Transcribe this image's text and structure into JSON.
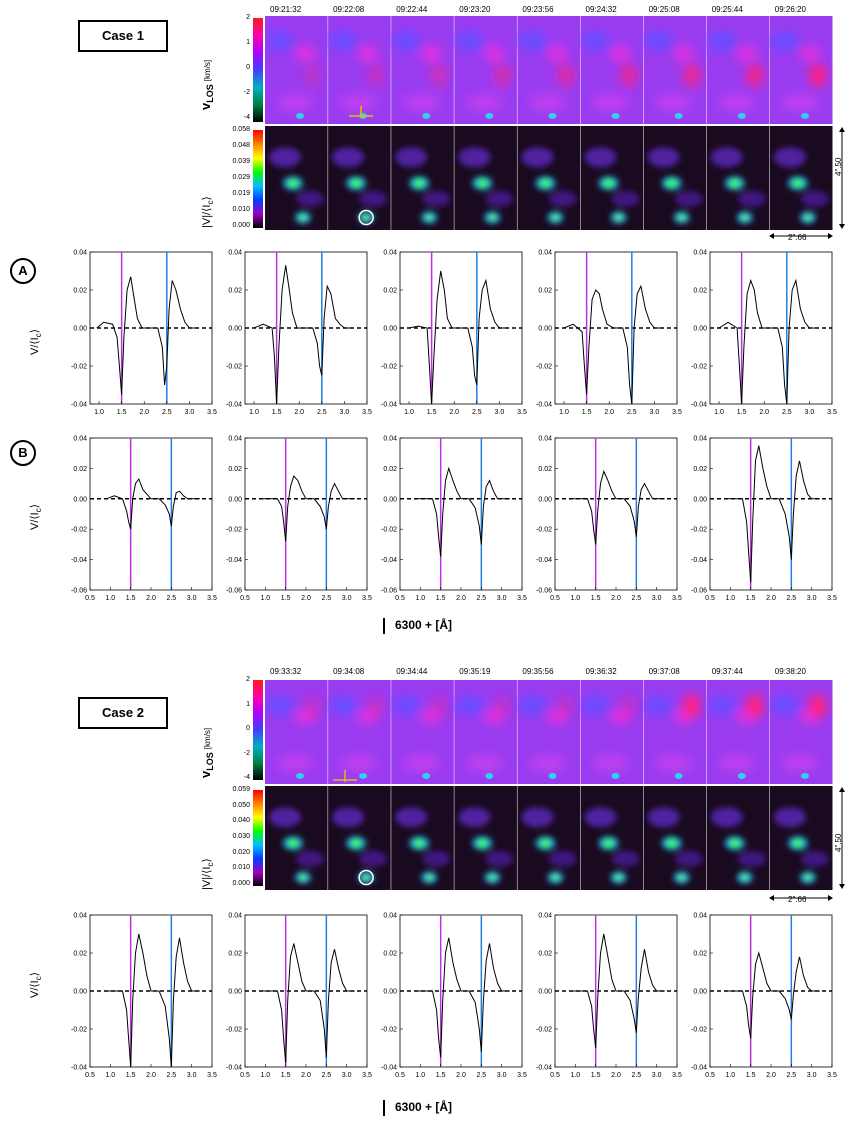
{
  "case1": {
    "label": "Case 1",
    "times": [
      "09:21:32",
      "09:22:08",
      "09:22:44",
      "09:23:20",
      "09:23:56",
      "09:24:32",
      "09:25:08",
      "09:25:44",
      "09:26:20"
    ],
    "vlos_label_main": "v",
    "vlos_label_sub": "LOS",
    "vlos_unit": "[km/s]",
    "vlos_ticks": [
      "2",
      "1",
      "0",
      "-2",
      "-4"
    ],
    "vi_label": "|V|/⟨I",
    "vi_label_sub": "c",
    "vi_label_end": "⟩",
    "vi_ticks": [
      "0.058",
      "0.048",
      "0.039",
      "0.029",
      "0.019",
      "0.010",
      "0.000"
    ],
    "height_scale": "4\".50",
    "width_scale": "2\".66"
  },
  "case2": {
    "label": "Case 2",
    "times": [
      "09:33:32",
      "09:34:08",
      "09:34:44",
      "09:35:19",
      "09:35:56",
      "09:36:32",
      "09:37:08",
      "09:37:44",
      "09:38:20"
    ],
    "vlos_label_main": "v",
    "vlos_label_sub": "LOS",
    "vlos_unit": "[km/s]",
    "vlos_ticks": [
      "2",
      "1",
      "0",
      "-2",
      "-4"
    ],
    "vi_label": "|V|/⟨I",
    "vi_label_sub": "c",
    "vi_label_end": "⟩",
    "vi_ticks": [
      "0.059",
      "0.050",
      "0.040",
      "0.030",
      "0.020",
      "0.010",
      "0.000"
    ],
    "height_scale": "4\".50",
    "width_scale": "2\".66"
  },
  "row_labels": {
    "a": "A",
    "b": "B"
  },
  "ylabel": "V/⟨I",
  "ylabel_sub": "c",
  "ylabel_end": "⟩",
  "xlabel": "6300 +  [Å]",
  "chart_data": [
    {
      "type": "line",
      "name_row": "A",
      "x_ticks": [
        "1.0",
        "1.5",
        "2.0",
        "2.5",
        "3.0",
        "3.5"
      ],
      "xlim": [
        0.8,
        3.5
      ],
      "ylim": [
        -0.04,
        0.04
      ],
      "y_ticks": [
        "0.04",
        "0.02",
        "0.00",
        "-0.02",
        "-0.04"
      ],
      "lines": {
        "magenta_x": 1.5,
        "blue_x": 2.5
      },
      "panels": [
        {
          "x": [
            0.95,
            1.1,
            1.3,
            1.4,
            1.45,
            1.5,
            1.55,
            1.62,
            1.7,
            1.78,
            1.85,
            1.95,
            2.1,
            2.3,
            2.4,
            2.45,
            2.5,
            2.55,
            2.62,
            2.7,
            2.8,
            2.9,
            3.0,
            3.2
          ],
          "y": [
            0.0,
            0.003,
            0.002,
            -0.005,
            -0.02,
            -0.035,
            -0.005,
            0.02,
            0.027,
            0.015,
            0.005,
            0.0,
            0.0,
            0.0,
            -0.01,
            -0.03,
            -0.02,
            0.01,
            0.025,
            0.02,
            0.01,
            0.003,
            0.0,
            0.0
          ]
        },
        {
          "x": [
            1.0,
            1.2,
            1.4,
            1.45,
            1.5,
            1.55,
            1.62,
            1.7,
            1.78,
            1.85,
            1.95,
            2.1,
            2.3,
            2.4,
            2.45,
            2.5,
            2.55,
            2.62,
            2.7,
            2.8,
            2.9,
            3.0,
            3.2
          ],
          "y": [
            0.0,
            0.002,
            0.0,
            -0.015,
            -0.04,
            -0.01,
            0.02,
            0.033,
            0.02,
            0.008,
            0.0,
            0.0,
            0.0,
            -0.008,
            -0.02,
            -0.025,
            0.005,
            0.022,
            0.018,
            0.005,
            0.002,
            0.0,
            0.0
          ]
        },
        {
          "x": [
            1.0,
            1.2,
            1.4,
            1.45,
            1.5,
            1.55,
            1.62,
            1.7,
            1.78,
            1.85,
            1.95,
            2.1,
            2.3,
            2.4,
            2.45,
            2.5,
            2.55,
            2.62,
            2.7,
            2.8,
            2.9,
            3.0,
            3.2
          ],
          "y": [
            0.0,
            0.001,
            0.0,
            -0.02,
            -0.04,
            -0.015,
            0.015,
            0.03,
            0.02,
            0.005,
            0.0,
            0.0,
            0.0,
            -0.01,
            -0.025,
            -0.03,
            0.005,
            0.02,
            0.025,
            0.01,
            0.003,
            0.0,
            0.0
          ]
        },
        {
          "x": [
            1.0,
            1.2,
            1.4,
            1.45,
            1.5,
            1.55,
            1.62,
            1.7,
            1.78,
            1.85,
            1.95,
            2.1,
            2.3,
            2.4,
            2.45,
            2.5,
            2.55,
            2.62,
            2.7,
            2.8,
            2.9,
            3.0,
            3.2
          ],
          "y": [
            0.0,
            0.002,
            -0.002,
            -0.02,
            -0.035,
            -0.01,
            0.015,
            0.02,
            0.018,
            0.01,
            0.002,
            0.0,
            0.0,
            -0.01,
            -0.03,
            -0.04,
            0.0,
            0.018,
            0.022,
            0.01,
            0.003,
            0.0,
            0.0
          ]
        },
        {
          "x": [
            1.0,
            1.2,
            1.4,
            1.45,
            1.5,
            1.55,
            1.62,
            1.7,
            1.78,
            1.85,
            1.95,
            2.1,
            2.3,
            2.4,
            2.45,
            2.5,
            2.55,
            2.62,
            2.7,
            2.8,
            2.9,
            3.0,
            3.2
          ],
          "y": [
            0.0,
            0.003,
            0.0,
            -0.02,
            -0.04,
            -0.01,
            0.018,
            0.025,
            0.02,
            0.008,
            0.0,
            0.0,
            0.0,
            -0.01,
            -0.03,
            -0.04,
            0.0,
            0.02,
            0.025,
            0.01,
            0.003,
            0.0,
            0.0
          ]
        }
      ]
    },
    {
      "type": "line",
      "name_row": "B",
      "x_ticks": [
        "0.5",
        "1.0",
        "1.5",
        "2.0",
        "2.5",
        "3.0",
        "3.5"
      ],
      "xlim": [
        0.5,
        3.5
      ],
      "ylim": [
        -0.06,
        0.04
      ],
      "y_ticks": [
        "0.04",
        "0.02",
        "0.00",
        "-0.02",
        "-0.04",
        "-0.06"
      ],
      "lines": {
        "magenta_x": 1.5,
        "blue_x": 2.5
      },
      "panels": [
        {
          "x": [
            0.9,
            1.1,
            1.3,
            1.4,
            1.45,
            1.5,
            1.55,
            1.62,
            1.7,
            1.8,
            1.9,
            2.0,
            2.2,
            2.35,
            2.45,
            2.5,
            2.55,
            2.62,
            2.7,
            2.8,
            2.9,
            3.0,
            3.2
          ],
          "y": [
            0.0,
            0.002,
            0.0,
            -0.008,
            -0.015,
            -0.02,
            0.0,
            0.01,
            0.013,
            0.006,
            0.003,
            0.0,
            0.0,
            -0.004,
            -0.01,
            -0.018,
            -0.005,
            0.004,
            0.005,
            0.002,
            0.0,
            0.0,
            0.0
          ]
        },
        {
          "x": [
            0.9,
            1.1,
            1.3,
            1.4,
            1.45,
            1.5,
            1.55,
            1.62,
            1.7,
            1.8,
            1.9,
            2.0,
            2.2,
            2.35,
            2.45,
            2.5,
            2.55,
            2.62,
            2.7,
            2.8,
            2.9,
            3.0,
            3.2
          ],
          "y": [
            0.0,
            0.0,
            0.0,
            -0.005,
            -0.015,
            -0.028,
            -0.005,
            0.008,
            0.015,
            0.012,
            0.005,
            0.0,
            0.0,
            -0.005,
            -0.012,
            -0.02,
            -0.005,
            0.005,
            0.01,
            0.005,
            0.0,
            0.0,
            0.0
          ]
        },
        {
          "x": [
            0.9,
            1.1,
            1.3,
            1.4,
            1.45,
            1.5,
            1.55,
            1.62,
            1.7,
            1.8,
            1.9,
            2.0,
            2.2,
            2.35,
            2.45,
            2.5,
            2.55,
            2.62,
            2.7,
            2.8,
            2.9,
            3.0,
            3.2
          ],
          "y": [
            0.0,
            0.0,
            0.0,
            -0.01,
            -0.025,
            -0.038,
            -0.01,
            0.012,
            0.02,
            0.012,
            0.005,
            0.0,
            0.0,
            -0.006,
            -0.018,
            -0.03,
            -0.005,
            0.008,
            0.012,
            0.005,
            0.0,
            0.0,
            0.0
          ]
        },
        {
          "x": [
            0.9,
            1.1,
            1.3,
            1.4,
            1.45,
            1.5,
            1.55,
            1.62,
            1.7,
            1.8,
            1.9,
            2.0,
            2.2,
            2.35,
            2.45,
            2.5,
            2.55,
            2.62,
            2.7,
            2.8,
            2.9,
            3.0,
            3.2
          ],
          "y": [
            0.0,
            0.0,
            0.0,
            -0.008,
            -0.02,
            -0.03,
            -0.008,
            0.01,
            0.018,
            0.012,
            0.005,
            0.0,
            0.0,
            -0.005,
            -0.015,
            -0.025,
            -0.005,
            0.006,
            0.01,
            0.005,
            0.0,
            0.0,
            0.0
          ]
        },
        {
          "x": [
            0.9,
            1.1,
            1.3,
            1.4,
            1.45,
            1.5,
            1.55,
            1.62,
            1.7,
            1.8,
            1.9,
            2.0,
            2.2,
            2.35,
            2.45,
            2.5,
            2.55,
            2.62,
            2.7,
            2.8,
            2.9,
            3.0,
            3.2
          ],
          "y": [
            0.0,
            0.0,
            0.0,
            -0.015,
            -0.035,
            -0.055,
            -0.015,
            0.025,
            0.035,
            0.02,
            0.008,
            0.0,
            0.0,
            -0.01,
            -0.025,
            -0.04,
            -0.01,
            0.015,
            0.025,
            0.012,
            0.003,
            0.0,
            0.0
          ]
        }
      ]
    },
    {
      "type": "line",
      "name_row": "case2",
      "x_ticks": [
        "0.5",
        "1.0",
        "1.5",
        "2.0",
        "2.5",
        "3.0",
        "3.5"
      ],
      "xlim": [
        0.5,
        3.5
      ],
      "ylim": [
        -0.04,
        0.04
      ],
      "y_ticks": [
        "0.04",
        "0.02",
        "0.00",
        "-0.02",
        "-0.04"
      ],
      "lines": {
        "magenta_x": 1.5,
        "blue_x": 2.5
      },
      "panels": [
        {
          "x": [
            0.9,
            1.1,
            1.3,
            1.4,
            1.45,
            1.5,
            1.55,
            1.62,
            1.7,
            1.8,
            1.9,
            2.0,
            2.2,
            2.35,
            2.45,
            2.5,
            2.55,
            2.62,
            2.7,
            2.8,
            2.9,
            3.0,
            3.2
          ],
          "y": [
            0.0,
            0.0,
            0.0,
            -0.01,
            -0.025,
            -0.04,
            -0.005,
            0.02,
            0.03,
            0.02,
            0.008,
            0.0,
            0.0,
            -0.008,
            -0.025,
            -0.04,
            -0.005,
            0.018,
            0.028,
            0.015,
            0.005,
            0.0,
            0.0
          ]
        },
        {
          "x": [
            0.9,
            1.1,
            1.3,
            1.4,
            1.45,
            1.5,
            1.55,
            1.62,
            1.7,
            1.8,
            1.9,
            2.0,
            2.2,
            2.35,
            2.45,
            2.5,
            2.55,
            2.62,
            2.7,
            2.8,
            2.9,
            3.0,
            3.2
          ],
          "y": [
            0.0,
            0.0,
            0.0,
            -0.01,
            -0.025,
            -0.038,
            -0.005,
            0.018,
            0.025,
            0.015,
            0.005,
            0.0,
            0.0,
            -0.005,
            -0.02,
            -0.035,
            -0.005,
            0.015,
            0.022,
            0.012,
            0.004,
            0.0,
            0.0
          ]
        },
        {
          "x": [
            0.9,
            1.1,
            1.3,
            1.4,
            1.45,
            1.5,
            1.55,
            1.62,
            1.7,
            1.8,
            1.9,
            2.0,
            2.2,
            2.35,
            2.45,
            2.5,
            2.55,
            2.62,
            2.7,
            2.8,
            2.9,
            3.0,
            3.2
          ],
          "y": [
            0.0,
            0.0,
            0.0,
            -0.01,
            -0.025,
            -0.035,
            -0.005,
            0.02,
            0.028,
            0.015,
            0.006,
            0.0,
            0.0,
            -0.006,
            -0.02,
            -0.032,
            -0.005,
            0.016,
            0.025,
            0.012,
            0.004,
            0.0,
            0.0
          ]
        },
        {
          "x": [
            0.9,
            1.1,
            1.3,
            1.4,
            1.45,
            1.5,
            1.55,
            1.62,
            1.7,
            1.8,
            1.9,
            2.0,
            2.2,
            2.35,
            2.45,
            2.5,
            2.55,
            2.62,
            2.7,
            2.8,
            2.9,
            3.0,
            3.2
          ],
          "y": [
            0.0,
            0.0,
            0.0,
            -0.008,
            -0.02,
            -0.03,
            -0.004,
            0.02,
            0.03,
            0.018,
            0.006,
            0.0,
            0.0,
            -0.005,
            -0.015,
            -0.022,
            -0.003,
            0.012,
            0.022,
            0.01,
            0.003,
            0.0,
            0.0
          ]
        },
        {
          "x": [
            0.9,
            1.1,
            1.3,
            1.4,
            1.45,
            1.5,
            1.55,
            1.62,
            1.7,
            1.8,
            1.9,
            2.0,
            2.2,
            2.35,
            2.45,
            2.5,
            2.55,
            2.62,
            2.7,
            2.8,
            2.9,
            3.0,
            3.2
          ],
          "y": [
            0.0,
            0.0,
            0.0,
            -0.008,
            -0.018,
            -0.025,
            -0.003,
            0.014,
            0.02,
            0.012,
            0.004,
            0.0,
            0.0,
            -0.004,
            -0.01,
            -0.015,
            -0.002,
            0.01,
            0.018,
            0.008,
            0.002,
            0.0,
            0.0
          ]
        }
      ]
    }
  ]
}
